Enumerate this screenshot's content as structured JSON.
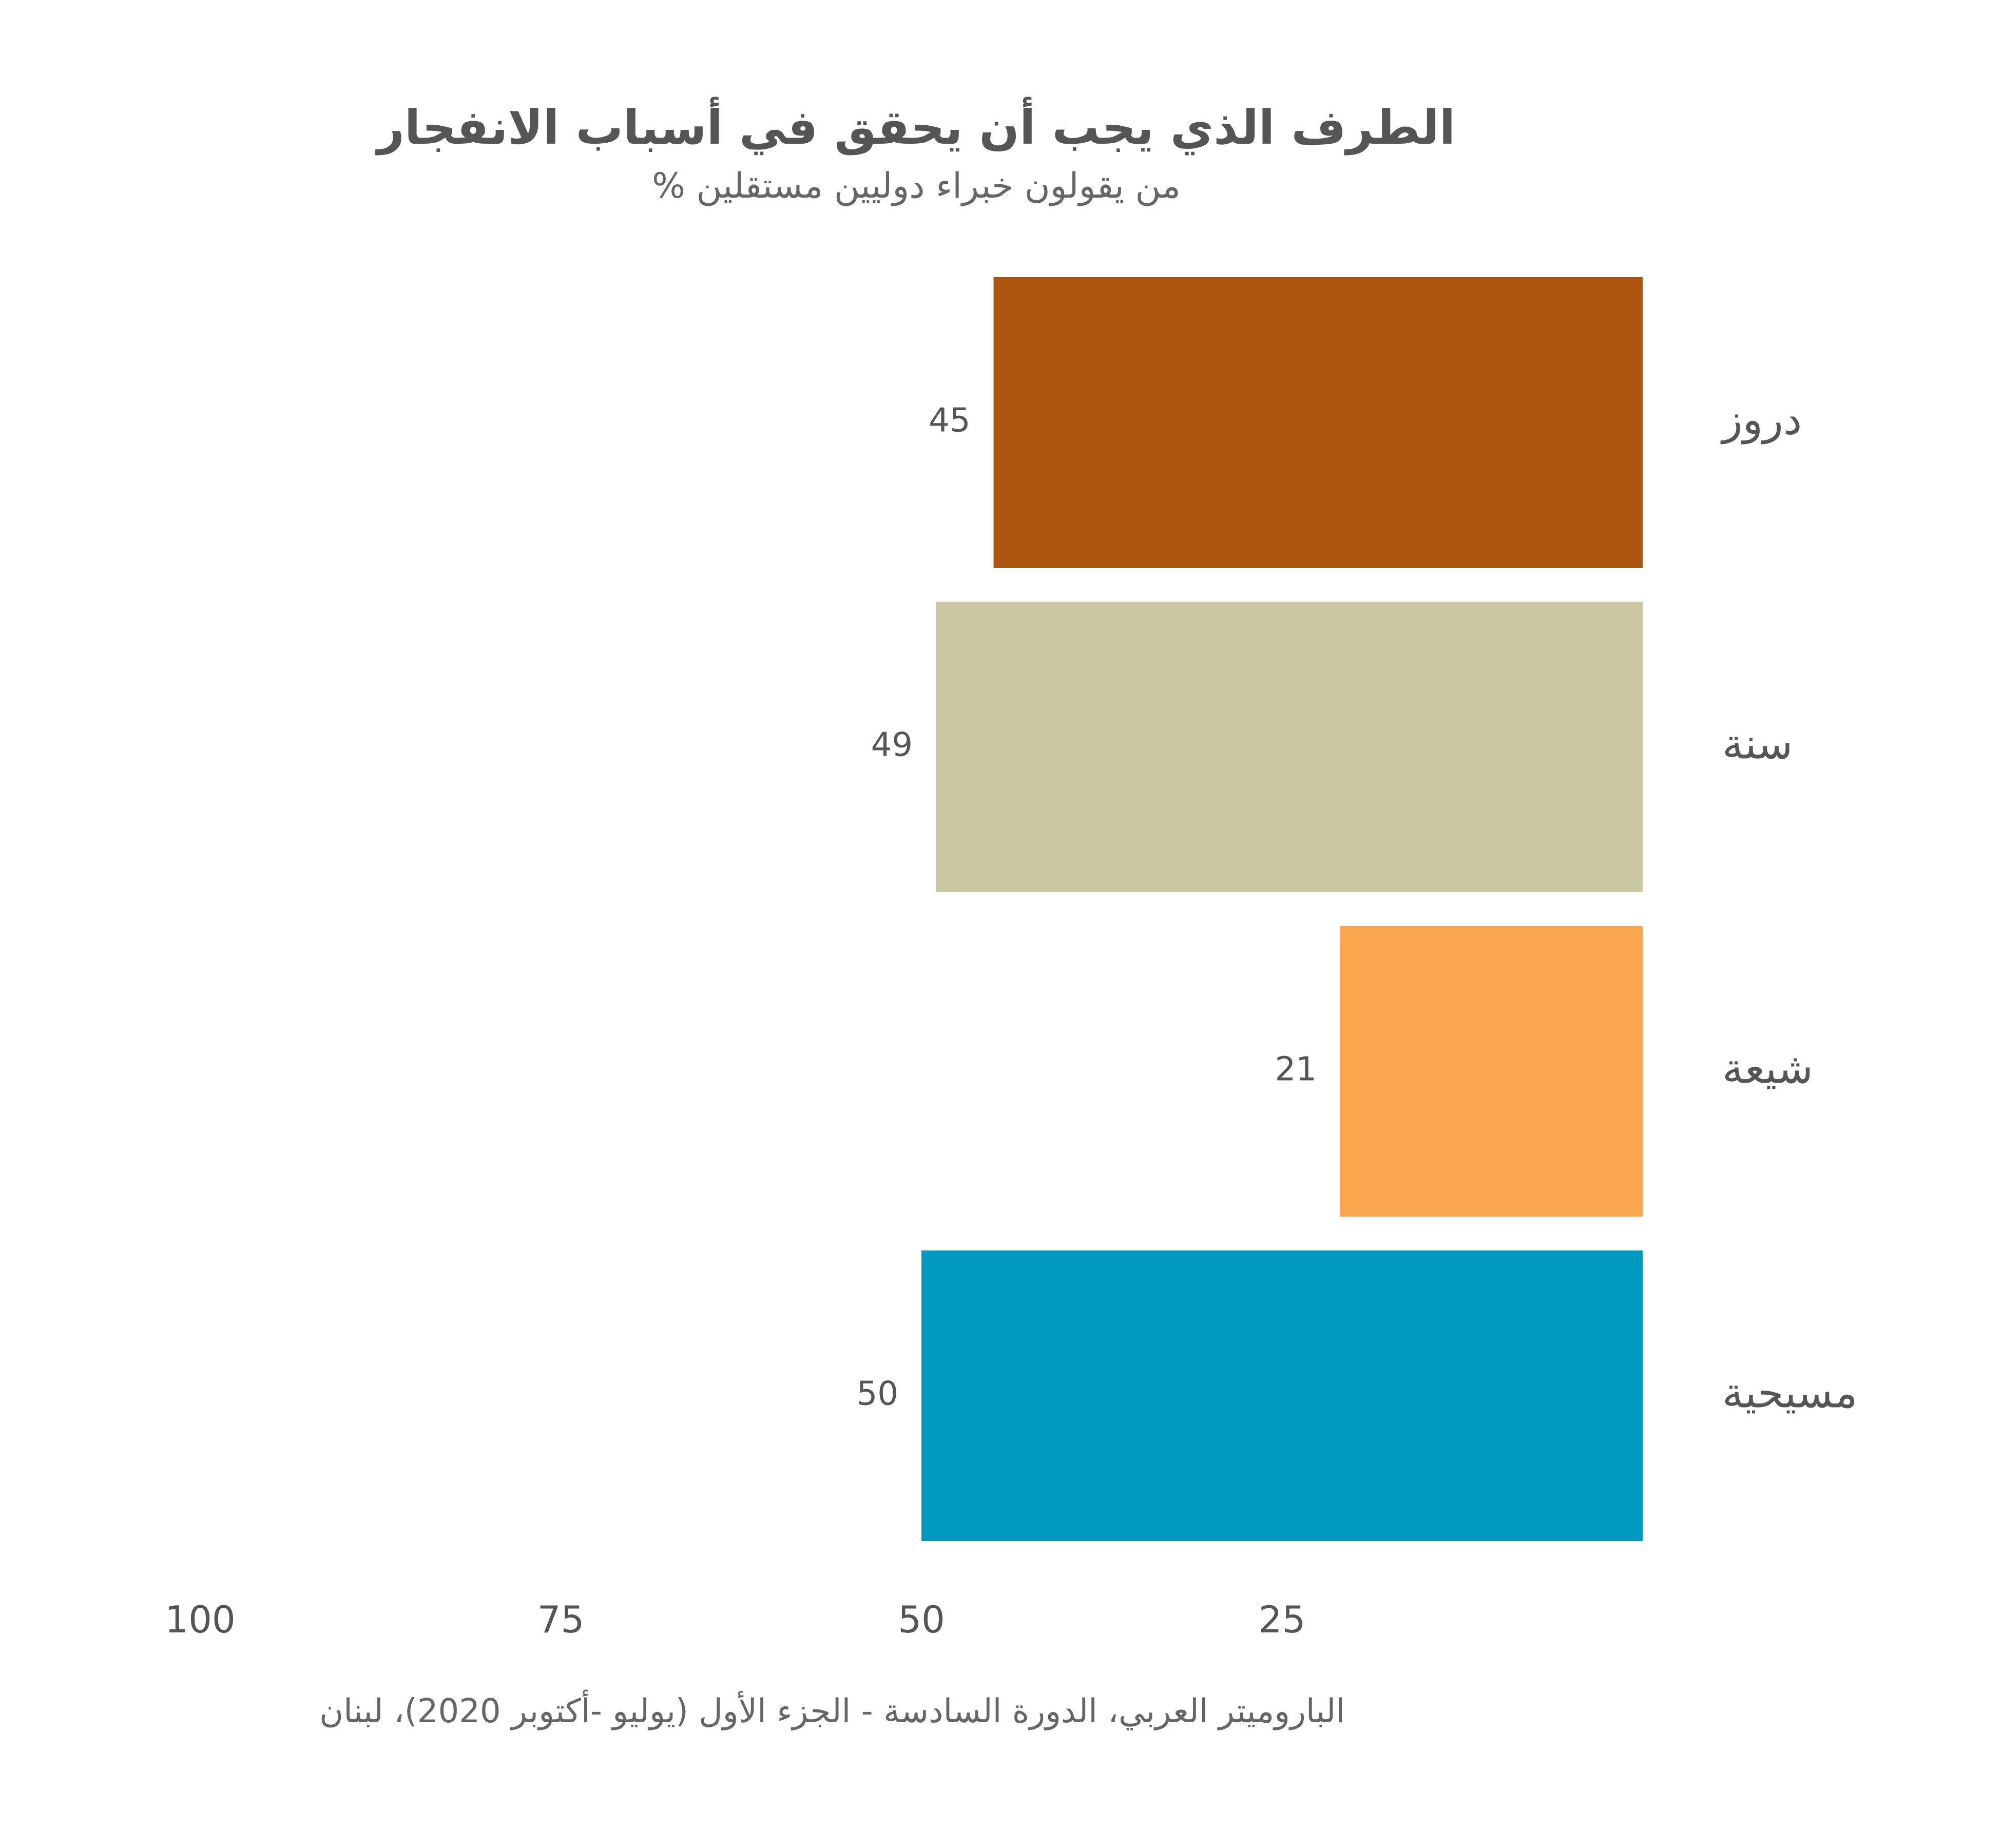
{
  "chart_data": {
    "type": "bar",
    "orientation": "horizontal",
    "direction": "rtl",
    "title": "الطرف الذي يجب أن يحقق في أسباب الانفجار",
    "subtitle": "% من يقولون خبراء دوليين مستقلين",
    "categories": [
      "دروز",
      "سنة",
      "شيعة",
      "مسيحية"
    ],
    "values": [
      45,
      49,
      21,
      50
    ],
    "data_labels": [
      "45",
      "49",
      "21",
      "50"
    ],
    "colors": [
      "#AC5310",
      "#CAC6A1",
      "#F9A74F",
      "#0097C1"
    ],
    "xlim": [
      0,
      100
    ],
    "x_ticks": [
      25,
      50,
      75,
      100
    ],
    "x_tick_labels": [
      "25",
      "50",
      "75",
      "100"
    ],
    "grid": false,
    "legend": "none",
    "source": "الباروميتر العربي، الدورة السادسة - الجزء الأول (يوليو -أكتوبر 2020)، لبنان"
  }
}
